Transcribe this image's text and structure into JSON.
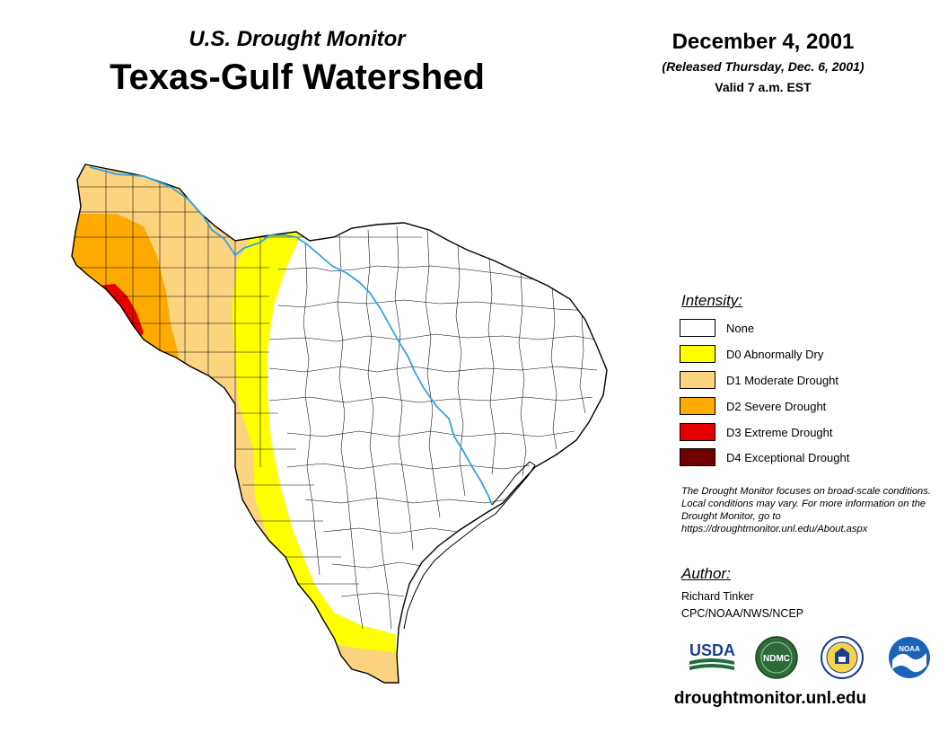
{
  "header": {
    "subtitle": "U.S. Drought Monitor",
    "title": "Texas-Gulf Watershed",
    "date": "December 4, 2001",
    "released": "(Released Thursday, Dec. 6, 2001)",
    "valid": "Valid 7 a.m. EST"
  },
  "legend": {
    "heading": "Intensity:",
    "items": [
      {
        "label": "None",
        "color": "#ffffff"
      },
      {
        "label": "D0 Abnormally Dry",
        "color": "#ffff00"
      },
      {
        "label": "D1 Moderate Drought",
        "color": "#fcd37f"
      },
      {
        "label": "D2 Severe Drought",
        "color": "#ffaa00"
      },
      {
        "label": "D3 Extreme Drought",
        "color": "#e60000"
      },
      {
        "label": "D4 Exceptional Drought",
        "color": "#730000"
      }
    ]
  },
  "note": "The Drought Monitor focuses on broad-scale conditions. Local conditions may vary. For more information on the Drought Monitor, go to https://droughtmonitor.unl.edu/About.aspx",
  "author": {
    "heading": "Author:",
    "name": "Richard Tinker",
    "org": "CPC/NOAA/NWS/NCEP"
  },
  "logos": {
    "usda": "USDA",
    "ndmc": "NDMC",
    "noaa": "NOAA"
  },
  "footer": {
    "website": "droughtmonitor.unl.edu"
  },
  "colors": {
    "river": "#2ba3e8",
    "county_line": "#000000"
  }
}
